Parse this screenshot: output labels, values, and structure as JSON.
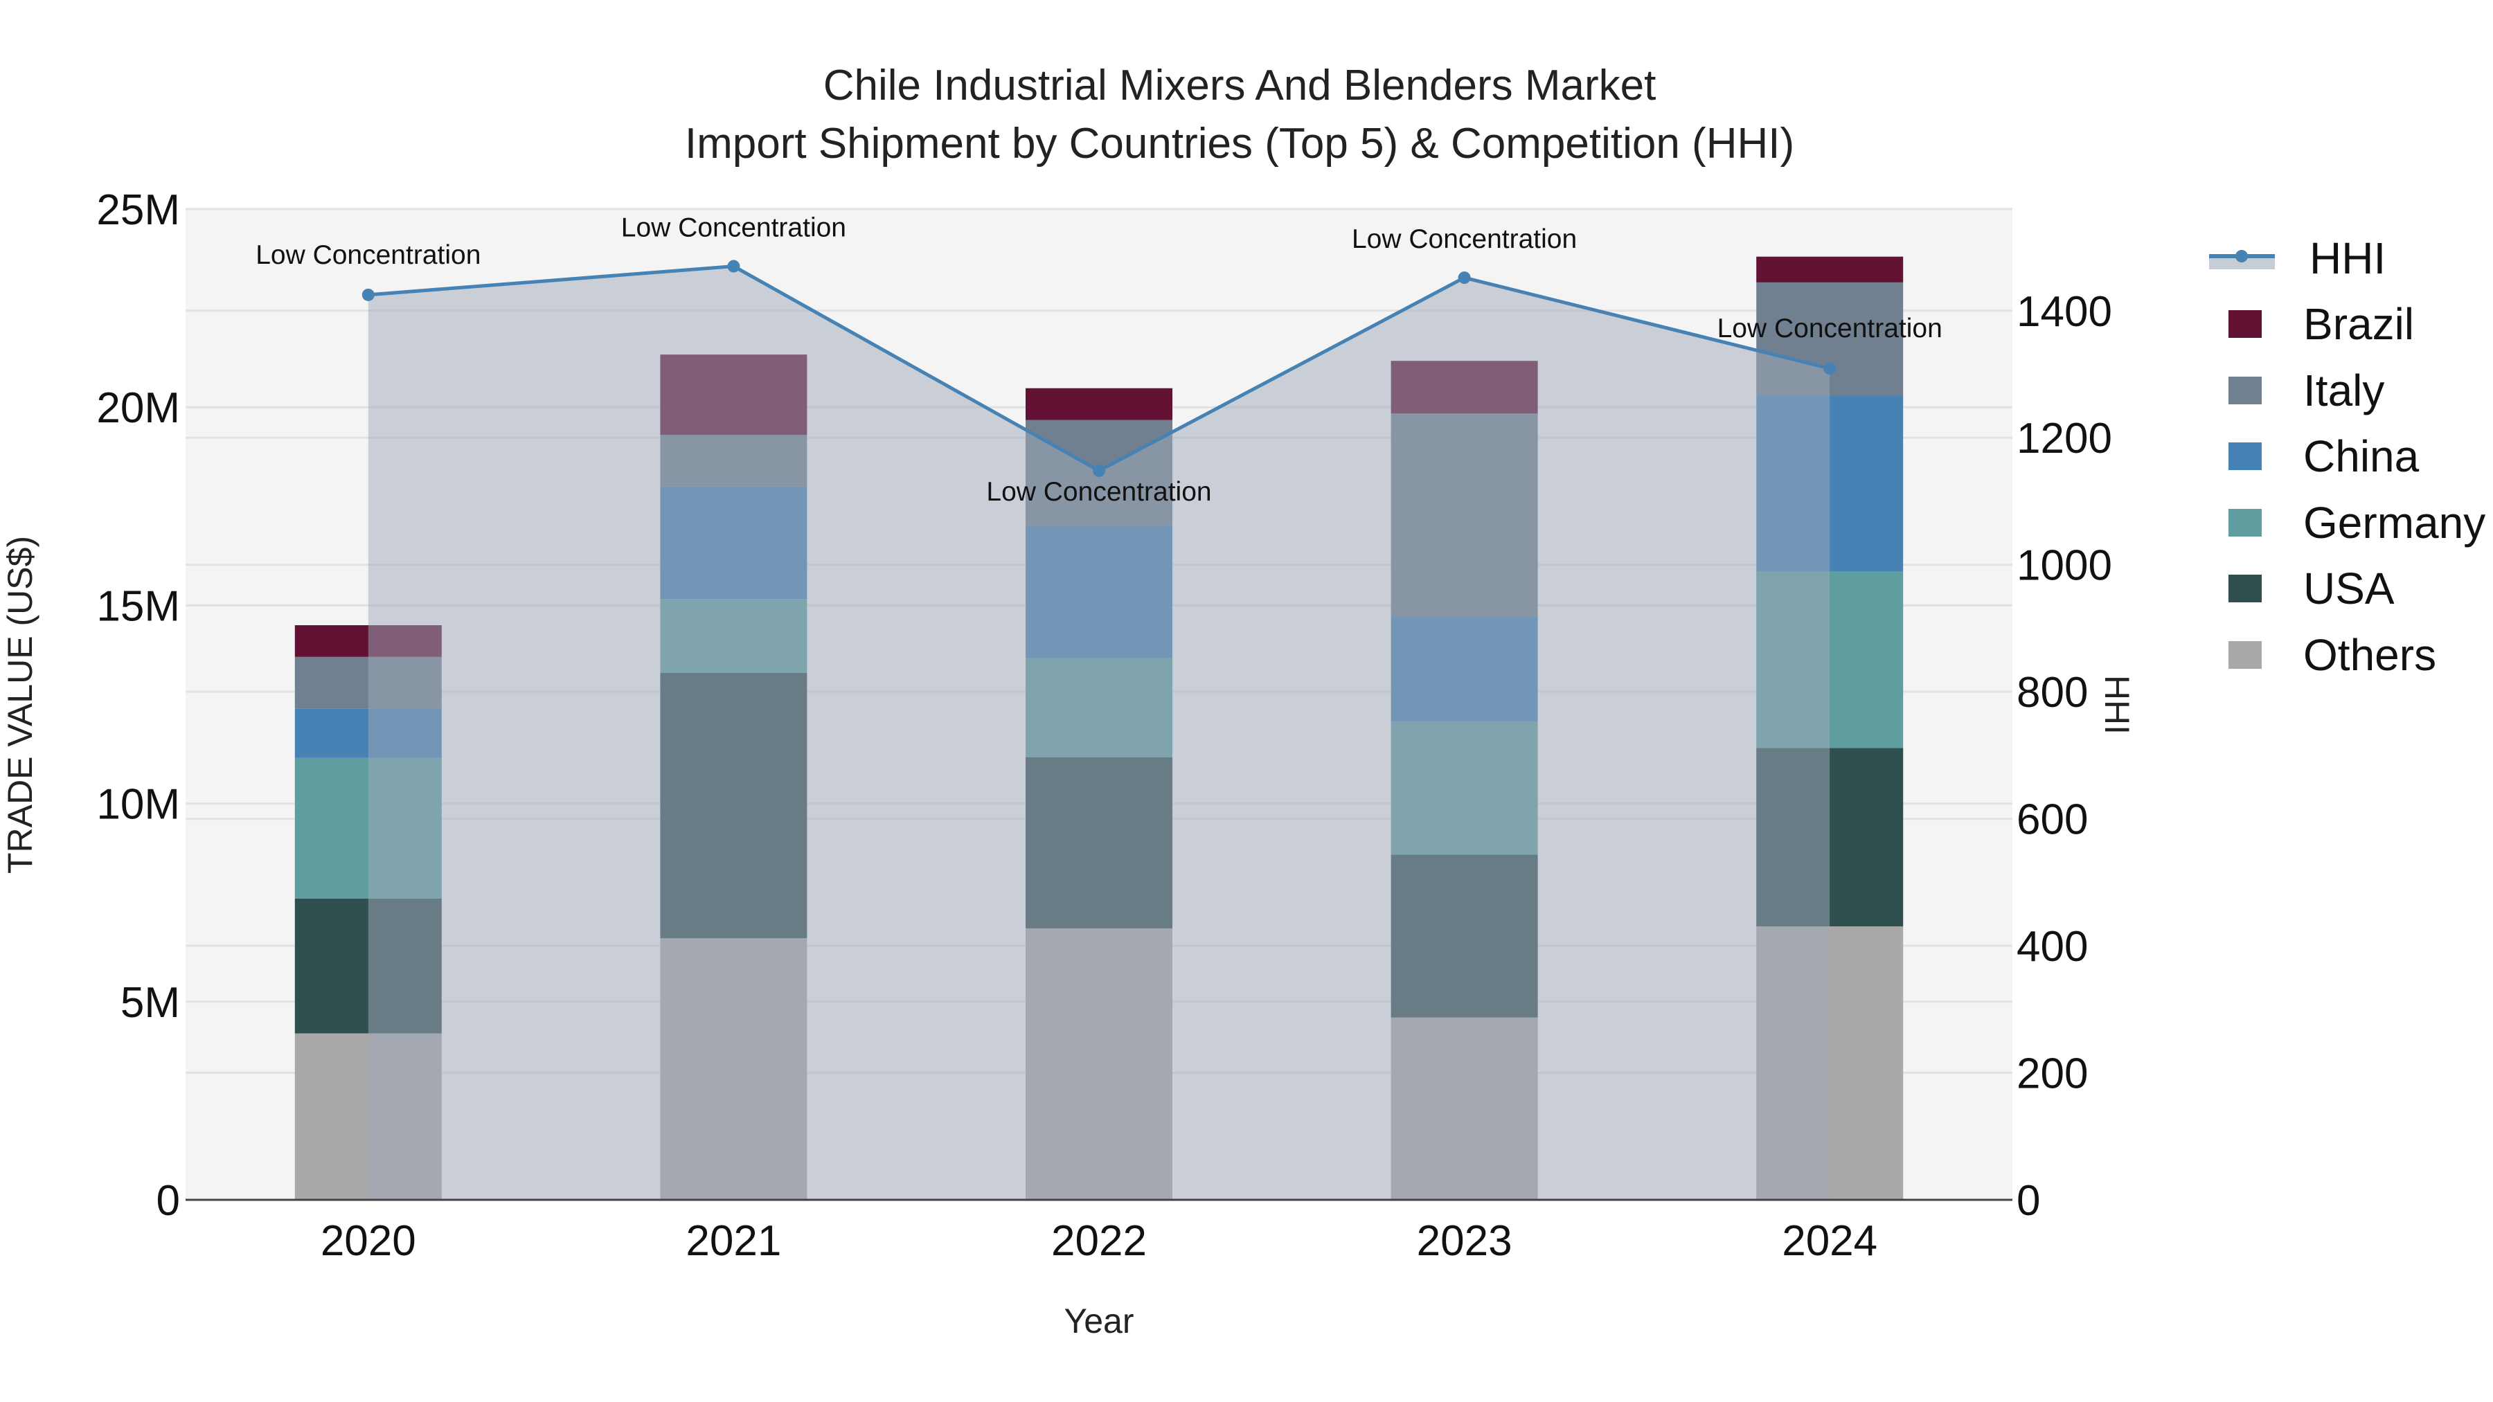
{
  "title": {
    "line1": "Chile Industrial Mixers And Blenders Market",
    "line2": "Import Shipment by Countries (Top 5) & Competition (HHI)"
  },
  "axes": {
    "x_label": "Year",
    "y_left_label": "TRADE VALUE (US$)",
    "y_right_label": "HHI",
    "y_left_ticks": [
      "0",
      "5M",
      "10M",
      "15M",
      "20M",
      "25M"
    ],
    "y_right_ticks": [
      "0",
      "200",
      "400",
      "600",
      "800",
      "1000",
      "1200",
      "1400"
    ]
  },
  "legend": {
    "items": [
      {
        "label": "HHI",
        "type": "line",
        "color": "#4682b4"
      },
      {
        "label": "Brazil",
        "type": "bar",
        "color": "#631234"
      },
      {
        "label": "Italy",
        "type": "bar",
        "color": "#708090"
      },
      {
        "label": "China",
        "type": "bar",
        "color": "#4682b4"
      },
      {
        "label": "Germany",
        "type": "bar",
        "color": "#5f9ea0"
      },
      {
        "label": "USA",
        "type": "bar",
        "color": "#2f4f4f"
      },
      {
        "label": "Others",
        "type": "bar",
        "color": "#a9a9a9"
      }
    ]
  },
  "annotation_label": "Low Concentration",
  "colors": {
    "plot_bg": "#f4f4f4",
    "hhi_area": "#c8cdd5",
    "hhi_line": "#4682b4",
    "grid": "#e2e2e2",
    "axis": "#444444"
  },
  "chart_data": {
    "type": "bar",
    "subtype": "stacked bar with line overlay (secondary axis)",
    "title": "Chile Industrial Mixers And Blenders Market — Import Shipment by Countries (Top 5) & Competition (HHI)",
    "xlabel": "Year",
    "ylabel": "TRADE VALUE (US$)",
    "y2label": "HHI",
    "ylim": [
      0,
      25000000
    ],
    "y2lim": [
      0,
      1560
    ],
    "categories": [
      "2020",
      "2021",
      "2022",
      "2023",
      "2024"
    ],
    "series": [
      {
        "name": "Others",
        "color": "#a9a9a9",
        "values": [
          4200000,
          6600000,
          6850000,
          4600000,
          6900000
        ]
      },
      {
        "name": "USA",
        "color": "#2f4f4f",
        "values": [
          3400000,
          6700000,
          4320000,
          4110000,
          4500000
        ]
      },
      {
        "name": "Germany",
        "color": "#5f9ea0",
        "values": [
          3550000,
          1860000,
          2500000,
          3350000,
          4450000
        ]
      },
      {
        "name": "China",
        "color": "#4682b4",
        "values": [
          1250000,
          2840000,
          3330000,
          2660000,
          4450000
        ]
      },
      {
        "name": "Italy",
        "color": "#708090",
        "values": [
          1300000,
          1300000,
          2680000,
          5120000,
          2850000
        ]
      },
      {
        "name": "Brazil",
        "color": "#631234",
        "values": [
          800000,
          2030000,
          800000,
          1330000,
          650000
        ]
      }
    ],
    "line_series": {
      "name": "HHI",
      "axis": "right",
      "color": "#4682b4",
      "values": [
        1425,
        1470,
        1148,
        1452,
        1309
      ],
      "annotations": [
        "Low Concentration",
        "Low Concentration",
        "Low Concentration",
        "Low Concentration",
        "Low Concentration"
      ]
    },
    "legend_position": "right",
    "grid": true
  }
}
